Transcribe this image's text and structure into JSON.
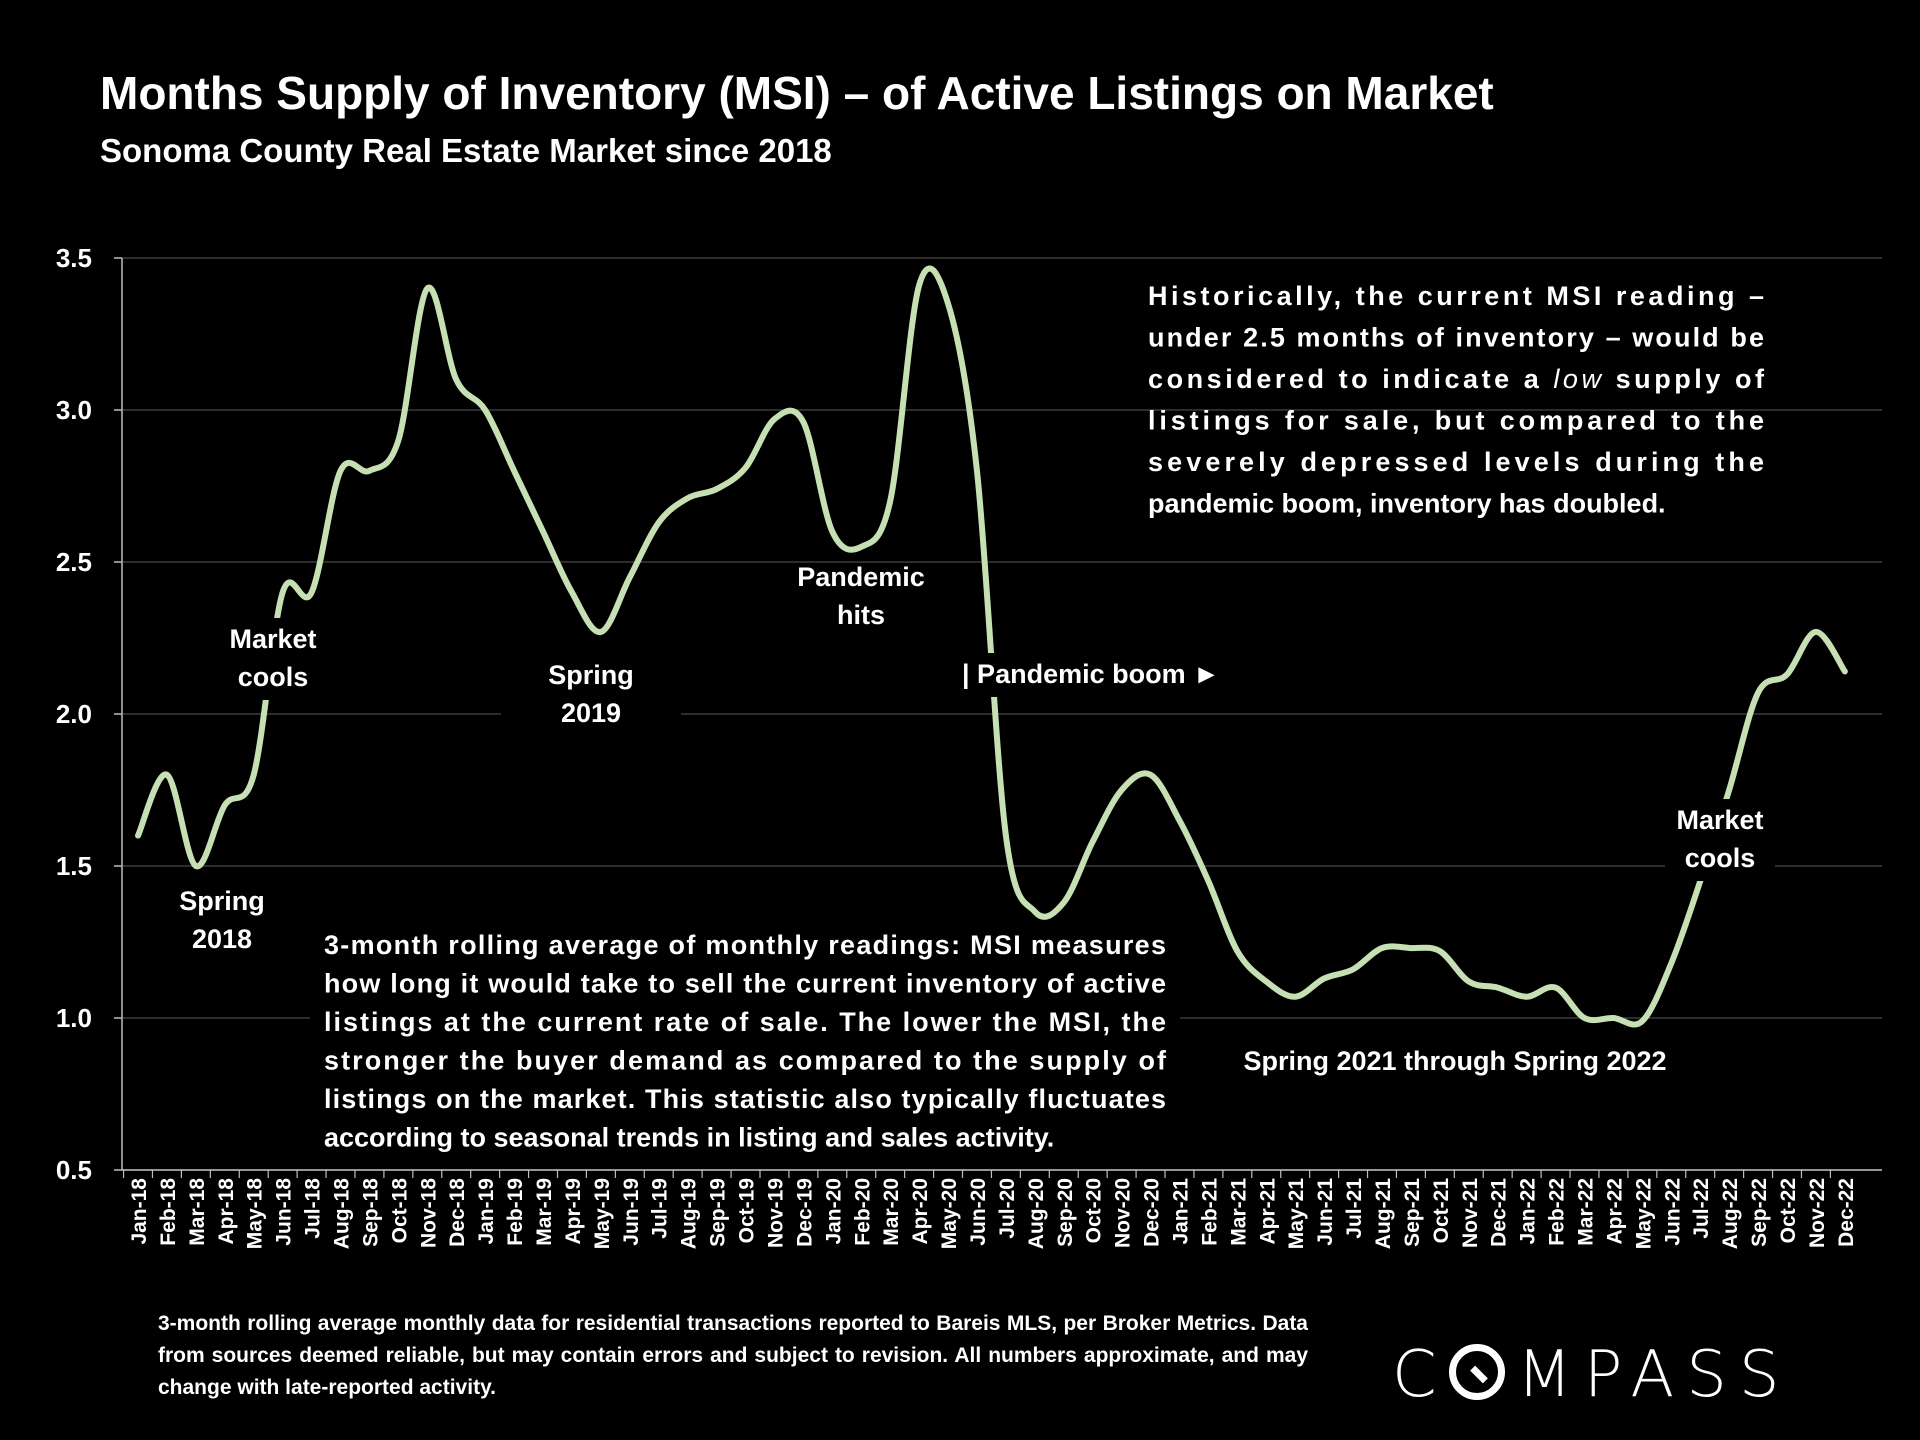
{
  "chart_data": {
    "type": "line",
    "title": "Months Supply of Inventory (MSI) – of Active Listings on Market",
    "subtitle": "Sonoma County Real Estate Market since 2018",
    "ylim": [
      0.5,
      3.5
    ],
    "yticks": [
      "3.5",
      "3.0",
      "2.5",
      "2.0",
      "1.5",
      "1.0",
      "0.5"
    ],
    "ytick_values": [
      3.5,
      3.0,
      2.5,
      2.0,
      1.5,
      1.0,
      0.5
    ],
    "grid": true,
    "line_color": "#c6e0b4",
    "categories": [
      "Jan-18",
      "Feb-18",
      "Mar-18",
      "Apr-18",
      "May-18",
      "Jun-18",
      "Jul-18",
      "Aug-18",
      "Sep-18",
      "Oct-18",
      "Nov-18",
      "Dec-18",
      "Jan-19",
      "Feb-19",
      "Mar-19",
      "Apr-19",
      "May-19",
      "Jun-19",
      "Jul-19",
      "Aug-19",
      "Sep-19",
      "Oct-19",
      "Nov-19",
      "Dec-19",
      "Jan-20",
      "Feb-20",
      "Mar-20",
      "Apr-20",
      "May-20",
      "Jun-20",
      "Jul-20",
      "Aug-20",
      "Sep-20",
      "Oct-20",
      "Nov-20",
      "Dec-20",
      "Jan-21",
      "Feb-21",
      "Mar-21",
      "Apr-21",
      "May-21",
      "Jun-21",
      "Jul-21",
      "Aug-21",
      "Sep-21",
      "Oct-21",
      "Nov-21",
      "Dec-21",
      "Jan-22",
      "Feb-22",
      "Mar-22",
      "Apr-22",
      "May-22",
      "Jun-22",
      "Jul-22",
      "Aug-22",
      "Sep-22",
      "Oct-22",
      "Nov-22",
      "Dec-22"
    ],
    "values": [
      1.6,
      1.8,
      1.5,
      1.7,
      1.8,
      2.4,
      2.4,
      2.8,
      2.8,
      2.9,
      3.4,
      3.1,
      3.0,
      2.8,
      2.6,
      2.4,
      2.27,
      2.45,
      2.63,
      2.71,
      2.74,
      2.81,
      2.97,
      2.96,
      2.6,
      2.55,
      2.7,
      3.41,
      3.35,
      2.8,
      1.6,
      1.35,
      1.38,
      1.58,
      1.75,
      1.8,
      1.65,
      1.45,
      1.22,
      1.12,
      1.07,
      1.13,
      1.16,
      1.23,
      1.23,
      1.22,
      1.12,
      1.1,
      1.07,
      1.1,
      1.0,
      1.0,
      0.99,
      1.18,
      1.45,
      1.75,
      2.07,
      2.13,
      2.27,
      2.14
    ],
    "annotations": [
      {
        "key": "spring2018",
        "lines": [
          "Spring",
          "2018"
        ]
      },
      {
        "key": "market_cools_2018",
        "lines": [
          "Market",
          "cools"
        ]
      },
      {
        "key": "spring2019",
        "lines": [
          "Spring",
          "2019"
        ]
      },
      {
        "key": "pandemic_hits",
        "lines": [
          "Pandemic",
          "hits"
        ]
      },
      {
        "key": "pandemic_boom",
        "lines": [
          "| Pandemic boom ►"
        ]
      },
      {
        "key": "spring2021_2022",
        "lines": [
          "Spring 2021 through Spring 2022"
        ]
      },
      {
        "key": "market_cools_2022",
        "lines": [
          "Market",
          "cools"
        ]
      }
    ],
    "note_top_right": [
      {
        "text": "Historically, the current MSI reading –",
        "italic_word": ""
      },
      {
        "text": "under 2.5 months of inventory – would be",
        "italic_word": ""
      },
      {
        "text": "considered to indicate a low supply of",
        "italic_word": "low"
      },
      {
        "text": "listings for sale, but compared to the",
        "italic_word": ""
      },
      {
        "text": "severely depressed levels during the",
        "italic_word": ""
      },
      {
        "text": "pandemic boom, inventory has doubled.",
        "italic_word": ""
      }
    ],
    "note_bottom": [
      "3-month rolling average of monthly readings: MSI measures",
      "how long it would take to sell the current inventory of active",
      "listings at the current rate of sale. The lower the MSI, the",
      "stronger the buyer demand as compared to the supply of",
      "listings on the market. This statistic also typically fluctuates",
      "according to seasonal trends in listing and sales activity."
    ]
  },
  "footer": {
    "source": "3-month rolling average monthly data for residential transactions reported to Bareis MLS, per Broker Metrics. Data from sources deemed reliable, but may contain errors and subject to revision. All numbers approximate, and may change with late-reported activity."
  },
  "logo": {
    "prefix": "C",
    "suffix": "MPASS"
  }
}
